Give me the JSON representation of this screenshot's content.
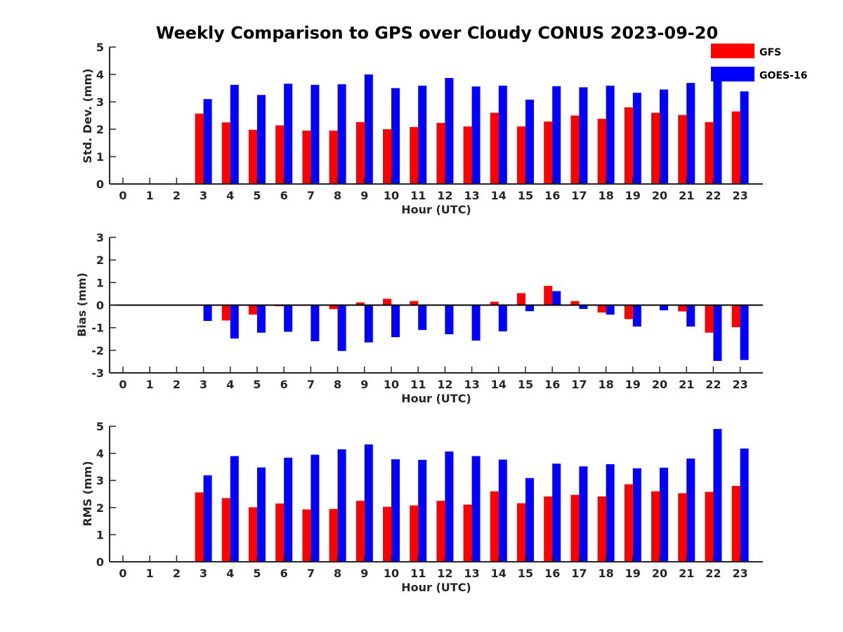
{
  "title": "Weekly Comparison to GPS over Cloudy CONUS 2023-09-20",
  "colors": {
    "GFS": "#ff0000",
    "GOES-16": "#0000ff",
    "axis": "#262626"
  },
  "legend": {
    "placement": "top-right",
    "entries": [
      "GFS",
      "GOES-16"
    ]
  },
  "chart_data": [
    {
      "type": "bar",
      "categories": [
        "0",
        "1",
        "2",
        "3",
        "4",
        "5",
        "6",
        "7",
        "8",
        "9",
        "10",
        "11",
        "12",
        "13",
        "14",
        "15",
        "16",
        "17",
        "18",
        "19",
        "20",
        "21",
        "22",
        "23"
      ],
      "xlabel": "Hour (UTC)",
      "ylabel": "Std. Dev. (mm)",
      "ylim": [
        0,
        5
      ],
      "yticks": [
        "0",
        "1",
        "2",
        "3",
        "4",
        "5"
      ],
      "series": [
        {
          "name": "GFS",
          "values": [
            0,
            0,
            0,
            2.57,
            2.25,
            1.98,
            2.14,
            1.95,
            1.95,
            2.26,
            2.0,
            2.08,
            2.23,
            2.1,
            2.6,
            2.1,
            2.28,
            2.5,
            2.38,
            2.8,
            2.6,
            2.52,
            2.26,
            2.65
          ]
        },
        {
          "name": "GOES-16",
          "values": [
            0,
            0,
            0,
            3.1,
            3.62,
            3.25,
            3.66,
            3.62,
            3.64,
            4.0,
            3.5,
            3.59,
            3.87,
            3.56,
            3.59,
            3.08,
            3.57,
            3.53,
            3.59,
            3.33,
            3.45,
            3.69,
            4.22,
            3.38
          ]
        }
      ]
    },
    {
      "type": "bar",
      "categories": [
        "0",
        "1",
        "2",
        "3",
        "4",
        "5",
        "6",
        "7",
        "8",
        "9",
        "10",
        "11",
        "12",
        "13",
        "14",
        "15",
        "16",
        "17",
        "18",
        "19",
        "20",
        "21",
        "22",
        "23"
      ],
      "xlabel": "Hour (UTC)",
      "ylabel": "Bias (mm)",
      "ylim": [
        -3,
        3
      ],
      "yticks": [
        "-3",
        "-2",
        "-1",
        "0",
        "1",
        "2",
        "3"
      ],
      "series": [
        {
          "name": "GFS",
          "values": [
            0,
            0,
            0,
            0,
            -0.68,
            -0.42,
            -0.05,
            0,
            -0.18,
            0.12,
            0.28,
            0.18,
            0,
            0.03,
            0.15,
            0.53,
            0.85,
            0.18,
            -0.33,
            -0.62,
            0,
            -0.28,
            -1.22,
            -0.98
          ]
        },
        {
          "name": "GOES-16",
          "values": [
            0,
            0,
            0,
            -0.7,
            -1.48,
            -1.22,
            -1.18,
            -1.6,
            -2.03,
            -1.65,
            -1.42,
            -1.1,
            -1.29,
            -1.57,
            -1.16,
            -0.27,
            0.62,
            -0.17,
            -0.42,
            -0.95,
            -0.23,
            -0.95,
            -2.47,
            -2.43
          ]
        }
      ]
    },
    {
      "type": "bar",
      "categories": [
        "0",
        "1",
        "2",
        "3",
        "4",
        "5",
        "6",
        "7",
        "8",
        "9",
        "10",
        "11",
        "12",
        "13",
        "14",
        "15",
        "16",
        "17",
        "18",
        "19",
        "20",
        "21",
        "22",
        "23"
      ],
      "xlabel": "Hour (UTC)",
      "ylabel": "RMS (mm)",
      "ylim": [
        0,
        5
      ],
      "yticks": [
        "0",
        "1",
        "2",
        "3",
        "4",
        "5"
      ],
      "series": [
        {
          "name": "GFS",
          "values": [
            0,
            0,
            0,
            2.56,
            2.35,
            2.01,
            2.15,
            1.93,
            1.95,
            2.25,
            2.03,
            2.08,
            2.25,
            2.11,
            2.6,
            2.16,
            2.41,
            2.47,
            2.41,
            2.86,
            2.6,
            2.53,
            2.58,
            2.8
          ]
        },
        {
          "name": "GOES-16",
          "values": [
            0,
            0,
            0,
            3.19,
            3.9,
            3.48,
            3.84,
            3.95,
            4.15,
            4.33,
            3.78,
            3.76,
            4.07,
            3.9,
            3.77,
            3.09,
            3.62,
            3.52,
            3.6,
            3.45,
            3.47,
            3.81,
            4.9,
            4.18
          ]
        }
      ]
    }
  ]
}
